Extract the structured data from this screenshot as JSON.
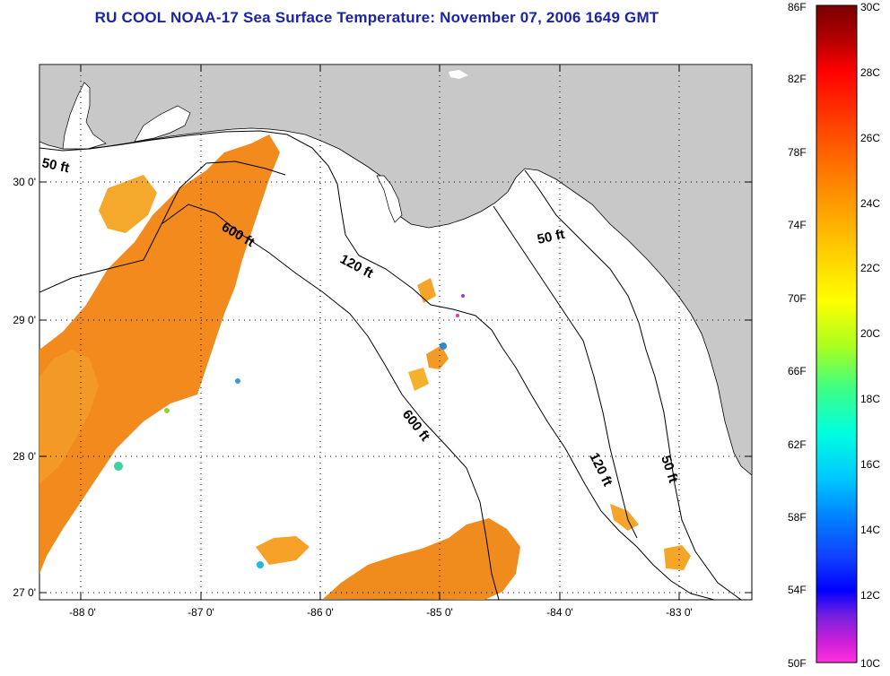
{
  "title": "RU COOL  NOAA-17  Sea Surface Temperature:  November 07, 2006 1649 GMT",
  "lat_labels": [
    "30 0'",
    "29 0'",
    "28 0'",
    "27 0'"
  ],
  "lon_labels": [
    "-88 0'",
    "-87 0'",
    "-86 0'",
    "-85 0'",
    "-84 0'",
    "-83 0'"
  ],
  "contour_labels": [
    "50 ft",
    "600 ft",
    "120 ft",
    "50 ft",
    "600 ft",
    "120 ft",
    "50 ft"
  ],
  "colorbar": {
    "fahrenheit": [
      "86F",
      "82F",
      "78F",
      "74F",
      "70F",
      "66F",
      "62F",
      "58F",
      "54F",
      "50F"
    ],
    "celsius": [
      "30C",
      "28C",
      "26C",
      "24C",
      "22C",
      "20C",
      "18C",
      "16C",
      "14C",
      "12C",
      "10C"
    ],
    "range_f": [
      50,
      86
    ],
    "range_c": [
      10,
      30
    ]
  },
  "colors": {
    "land": "#c8c8c8",
    "title": "#1a24a8",
    "sst_warm": "#f6861c",
    "sst_mid": "#f4a420"
  }
}
